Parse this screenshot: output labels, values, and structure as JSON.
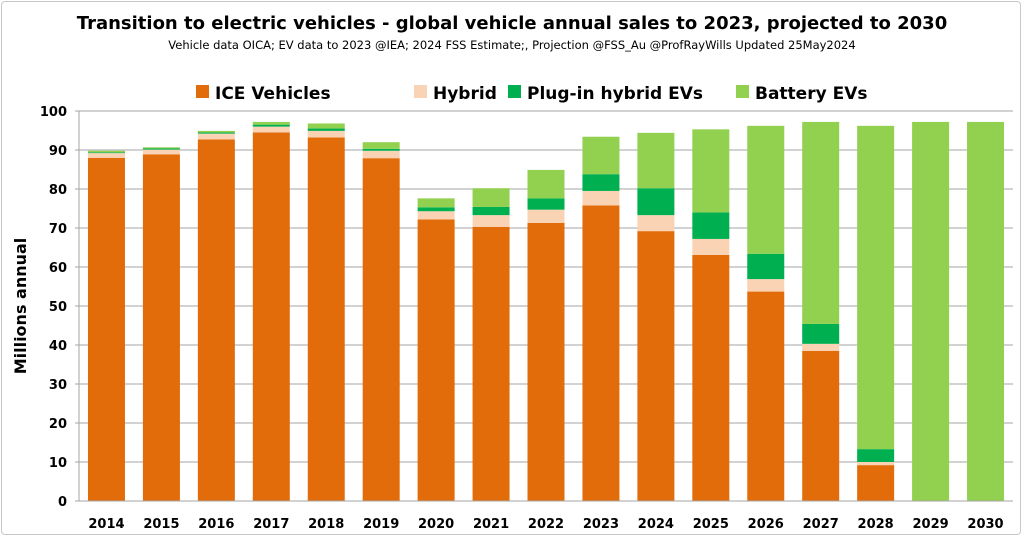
{
  "chart_data": {
    "type": "bar",
    "stacked": true,
    "title": "Transition to electric vehicles - global vehicle annual sales to 2023, projected to 2030",
    "subtitle": "Vehicle data OICA; EV data to 2023 @IEA;  2024 FSS Estimate;,  Projection @FSS_Au @ProfRayWills  Updated 25May2024",
    "xlabel": "",
    "ylabel": "Millions annual",
    "ylim": [
      0,
      100
    ],
    "yticks": [
      "0",
      "10",
      "20",
      "30",
      "40",
      "50",
      "60",
      "70",
      "80",
      "90",
      "100"
    ],
    "grid": true,
    "legend_position": "top",
    "categories": [
      "2014",
      "2015",
      "2016",
      "2017",
      "2018",
      "2019",
      "2020",
      "2021",
      "2022",
      "2023",
      "2024",
      "2025",
      "2026",
      "2027",
      "2028",
      "2029",
      "2030"
    ],
    "series": [
      {
        "name": "ICE Vehicles",
        "color": "#E36C0A",
        "values": [
          88.0,
          88.9,
          92.7,
          94.5,
          93.2,
          87.9,
          72.2,
          70.3,
          71.3,
          75.8,
          69.2,
          63.1,
          53.7,
          38.5,
          9.2,
          0,
          0
        ]
      },
      {
        "name": "Hybrid",
        "color": "#FAD3B4",
        "values": [
          1.2,
          1.2,
          1.5,
          1.5,
          1.7,
          1.9,
          2.1,
          3.0,
          3.4,
          3.7,
          4.1,
          4.1,
          3.2,
          1.8,
          0.8,
          0,
          0
        ]
      },
      {
        "name": "Plug-in hybrid EVs",
        "color": "#00B050",
        "values": [
          0.2,
          0.3,
          0.3,
          0.5,
          0.6,
          0.5,
          1.0,
          2.1,
          2.9,
          4.3,
          6.9,
          6.8,
          6.5,
          5.1,
          3.3,
          0,
          0
        ]
      },
      {
        "name": "Battery EVs",
        "color": "#92D050",
        "values": [
          0.4,
          0.3,
          0.4,
          0.7,
          1.3,
          1.7,
          2.3,
          4.8,
          7.3,
          9.6,
          14.2,
          21.3,
          32.8,
          51.8,
          82.9,
          97.2,
          97.2
        ]
      }
    ]
  }
}
